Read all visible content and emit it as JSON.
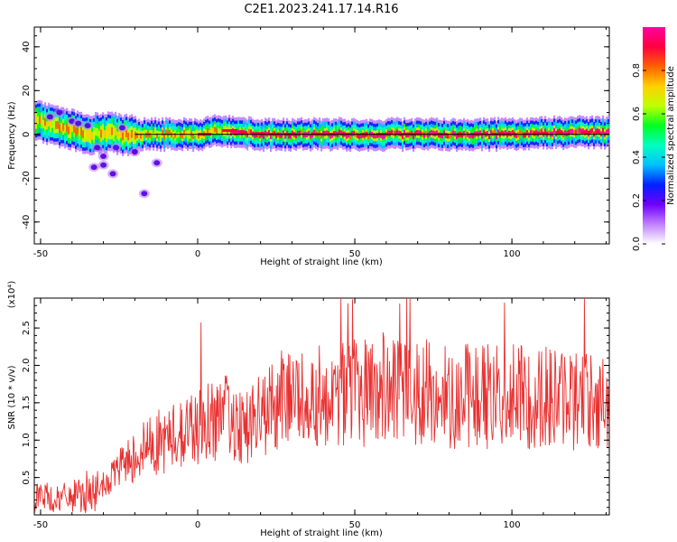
{
  "title": "C2E1.2023.241.17.14.R16",
  "chart_data": [
    {
      "type": "heatmap",
      "title": "C2E1.2023.241.17.14.R16",
      "xlabel": "Height of straight line (km)",
      "ylabel": "Frequency (Hz)",
      "xlim": [
        -52,
        131
      ],
      "ylim": [
        -50,
        49
      ],
      "x_ticks": [
        "-50",
        "0",
        "50",
        "100"
      ],
      "y_ticks": [
        "40",
        "20",
        "0",
        "-20",
        "-40"
      ],
      "colorbar": {
        "label": "Normalized spectral amplitude",
        "ticks": [
          "0.0",
          "0.2",
          "0.4",
          "0.6",
          "0.8"
        ],
        "range": [
          0,
          1
        ],
        "colors": [
          "#ffffff",
          "#c080ff",
          "#7000ff",
          "#0020ff",
          "#00c0ff",
          "#00ffc0",
          "#00ff20",
          "#c0ff00",
          "#ffd000",
          "#ff6000",
          "#ff0040",
          "#ff00a0"
        ]
      },
      "ridge": {
        "x": [
          -52,
          -48,
          -44,
          -40,
          -36,
          -30,
          -24,
          -18,
          -10,
          0,
          6,
          12,
          20,
          40,
          60,
          80,
          100,
          120,
          131
        ],
        "y": [
          6,
          5,
          3,
          2,
          0,
          1,
          0,
          0,
          0,
          0,
          2,
          1,
          0,
          0,
          0,
          0,
          0,
          1,
          1
        ]
      },
      "reference_line_y": 0,
      "scatter_blobs": [
        {
          "x": -40,
          "y": 6
        },
        {
          "x": -38,
          "y": 5
        },
        {
          "x": -35,
          "y": 4
        },
        {
          "x": -32,
          "y": -6
        },
        {
          "x": -30,
          "y": -10
        },
        {
          "x": -33,
          "y": -15
        },
        {
          "x": -30,
          "y": -14
        },
        {
          "x": -27,
          "y": -18
        },
        {
          "x": -26,
          "y": -6
        },
        {
          "x": -20,
          "y": -8
        },
        {
          "x": -17,
          "y": -27
        },
        {
          "x": -13,
          "y": -13
        },
        {
          "x": -44,
          "y": 10
        },
        {
          "x": -47,
          "y": 8
        },
        {
          "x": -24,
          "y": 3
        }
      ]
    },
    {
      "type": "line",
      "xlabel": "Height of straight line (km)",
      "ylabel": "SNR (10 * v/v)",
      "y_multiplier": "(x10⁴)",
      "xlim": [
        -52,
        131
      ],
      "ylim": [
        0,
        2.9
      ],
      "x_ticks": [
        "-50",
        "0",
        "50",
        "100"
      ],
      "y_ticks": [
        "2.5",
        "2.0",
        "1.5",
        "1.0",
        "0.5"
      ],
      "series": [
        {
          "color": "#e83030",
          "x": [
            -52,
            -50,
            -45,
            -40,
            -35,
            -30,
            -25,
            -20,
            -15,
            -10,
            -5,
            0,
            5,
            10,
            15,
            20,
            25,
            30,
            35,
            40,
            45,
            50,
            55,
            60,
            65,
            70,
            75,
            80,
            85,
            90,
            95,
            100,
            105,
            110,
            115,
            120,
            125,
            131
          ],
          "y": [
            0.3,
            0.25,
            0.2,
            0.25,
            0.25,
            0.35,
            0.6,
            0.8,
            0.95,
            1.0,
            1.1,
            1.2,
            1.3,
            1.3,
            1.2,
            1.3,
            1.5,
            1.55,
            1.6,
            1.6,
            1.6,
            1.65,
            1.65,
            1.7,
            1.6,
            1.65,
            1.6,
            1.6,
            1.6,
            1.6,
            1.6,
            1.6,
            1.55,
            1.6,
            1.55,
            1.55,
            1.55,
            1.5
          ]
        }
      ],
      "noise": {
        "seed": 7,
        "samples": 900
      }
    }
  ]
}
